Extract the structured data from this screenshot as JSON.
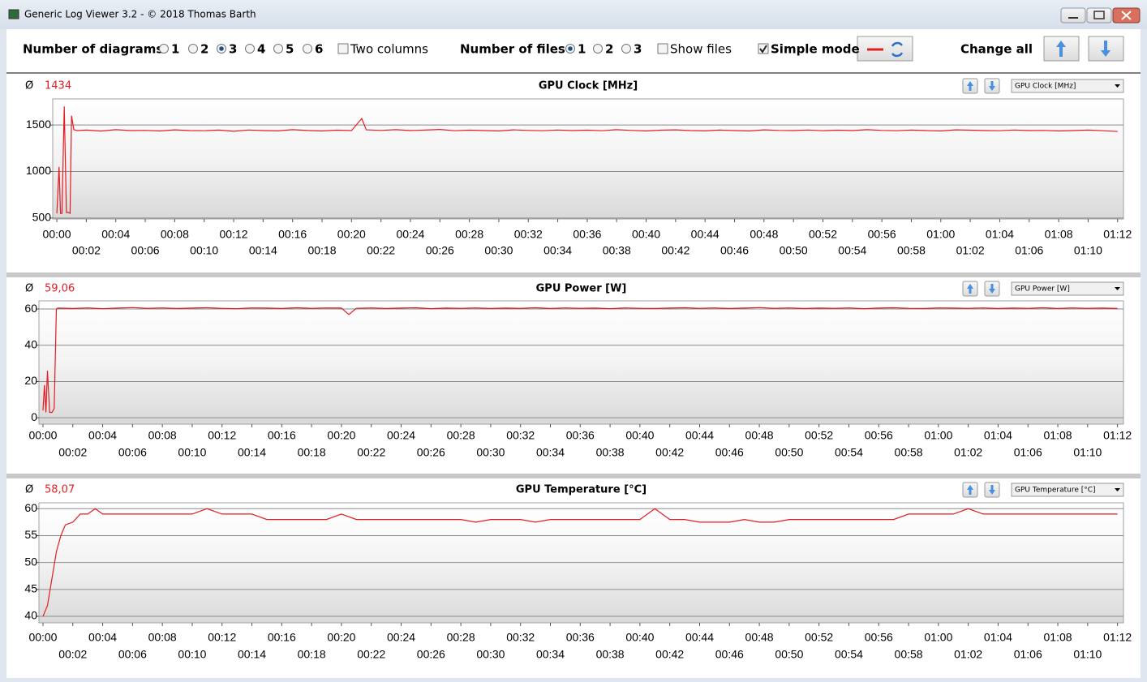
{
  "window": {
    "title": "Generic Log Viewer 3.2 - © 2018 Thomas Barth"
  },
  "toolbar": {
    "diagrams_label": "Number of diagrams",
    "diagram_options": [
      "1",
      "2",
      "3",
      "4",
      "5",
      "6"
    ],
    "diagrams_selected": "3",
    "two_columns": "Two columns",
    "two_columns_checked": false,
    "files_label": "Number of files",
    "file_options": [
      "1",
      "2",
      "3"
    ],
    "files_selected": "1",
    "show_files": "Show files",
    "show_files_checked": false,
    "simple_mode": "Simple mode",
    "simple_mode_checked": true,
    "change_all": "Change all"
  },
  "chart_data": [
    {
      "type": "line",
      "title": "GPU Clock [MHz]",
      "average_symbol": "Ø",
      "average": "1434",
      "selector": "GPU Clock [MHz]",
      "color": "#e31c23",
      "ylim": [
        490,
        1780
      ],
      "yticks": [
        500,
        1000,
        1500
      ],
      "grid": true,
      "xlim": [
        -0.28,
        72.4
      ],
      "xticks": [
        {
          "value": 0,
          "label": "00:00"
        },
        {
          "value": 2,
          "label": "00:02"
        },
        {
          "value": 4,
          "label": "00:04"
        },
        {
          "value": 6,
          "label": "00:06"
        },
        {
          "value": 8,
          "label": "00:08"
        },
        {
          "value": 10,
          "label": "00:10"
        },
        {
          "value": 12,
          "label": "00:12"
        },
        {
          "value": 14,
          "label": "00:14"
        },
        {
          "value": 16,
          "label": "00:16"
        },
        {
          "value": 18,
          "label": "00:18"
        },
        {
          "value": 20,
          "label": "00:20"
        },
        {
          "value": 22,
          "label": "00:22"
        },
        {
          "value": 24,
          "label": "00:24"
        },
        {
          "value": 26,
          "label": "00:26"
        },
        {
          "value": 28,
          "label": "00:28"
        },
        {
          "value": 30,
          "label": "00:30"
        },
        {
          "value": 32,
          "label": "00:32"
        },
        {
          "value": 34,
          "label": "00:34"
        },
        {
          "value": 36,
          "label": "00:36"
        },
        {
          "value": 38,
          "label": "00:38"
        },
        {
          "value": 40,
          "label": "00:40"
        },
        {
          "value": 42,
          "label": "00:42"
        },
        {
          "value": 44,
          "label": "00:44"
        },
        {
          "value": 46,
          "label": "00:46"
        },
        {
          "value": 48,
          "label": "00:48"
        },
        {
          "value": 50,
          "label": "00:50"
        },
        {
          "value": 52,
          "label": "00:52"
        },
        {
          "value": 54,
          "label": "00:54"
        },
        {
          "value": 56,
          "label": "00:56"
        },
        {
          "value": 58,
          "label": "00:58"
        },
        {
          "value": 60,
          "label": "01:00"
        },
        {
          "value": 62,
          "label": "01:02"
        },
        {
          "value": 64,
          "label": "01:04"
        },
        {
          "value": 66,
          "label": "01:06"
        },
        {
          "value": 68,
          "label": "01:08"
        },
        {
          "value": 70,
          "label": "01:10"
        },
        {
          "value": 72,
          "label": "01:12"
        }
      ],
      "x": [
        0,
        0.15,
        0.25,
        0.35,
        0.5,
        0.65,
        0.8,
        0.9,
        1.0,
        1.15,
        1.4,
        2,
        3,
        4,
        5,
        6,
        7,
        8,
        9,
        10,
        11,
        12,
        13,
        14,
        15,
        16,
        17,
        18,
        19,
        20,
        20.7,
        21,
        22,
        23,
        24,
        25,
        26,
        27,
        28,
        29,
        30,
        31,
        32,
        33,
        34,
        35,
        36,
        37,
        38,
        39,
        40,
        41,
        42,
        43,
        44,
        45,
        46,
        47,
        48,
        49,
        50,
        51,
        52,
        53,
        54,
        55,
        56,
        57,
        58,
        59,
        60,
        61,
        62,
        63,
        64,
        65,
        66,
        67,
        68,
        69,
        70,
        71,
        72
      ],
      "values": [
        550,
        1050,
        550,
        550,
        1700,
        560,
        560,
        550,
        1600,
        1450,
        1440,
        1445,
        1435,
        1450,
        1440,
        1442,
        1436,
        1448,
        1440,
        1438,
        1445,
        1432,
        1446,
        1440,
        1437,
        1450,
        1441,
        1436,
        1444,
        1440,
        1570,
        1448,
        1442,
        1450,
        1440,
        1445,
        1452,
        1438,
        1444,
        1440,
        1436,
        1448,
        1442,
        1438,
        1446,
        1440,
        1444,
        1438,
        1450,
        1442,
        1436,
        1444,
        1448,
        1440,
        1437,
        1445,
        1440,
        1436,
        1448,
        1442,
        1440,
        1446,
        1438,
        1444,
        1440,
        1450,
        1442,
        1438,
        1445,
        1440,
        1436,
        1448,
        1444,
        1440,
        1438,
        1446,
        1440,
        1442,
        1436,
        1440,
        1445,
        1438,
        1430
      ]
    },
    {
      "type": "line",
      "title": "GPU Power [W]",
      "average_symbol": "Ø",
      "average": "59,06",
      "selector": "GPU Power [W]",
      "color": "#e31c23",
      "ylim": [
        -3.5,
        64.5
      ],
      "yticks": [
        0,
        20,
        40,
        60
      ],
      "grid": true,
      "xlim": [
        -0.27,
        72.4
      ],
      "xticks": [
        {
          "value": 0,
          "label": "00:00"
        },
        {
          "value": 2,
          "label": "00:02"
        },
        {
          "value": 4,
          "label": "00:04"
        },
        {
          "value": 6,
          "label": "00:06"
        },
        {
          "value": 8,
          "label": "00:08"
        },
        {
          "value": 10,
          "label": "00:10"
        },
        {
          "value": 12,
          "label": "00:12"
        },
        {
          "value": 14,
          "label": "00:14"
        },
        {
          "value": 16,
          "label": "00:16"
        },
        {
          "value": 18,
          "label": "00:18"
        },
        {
          "value": 20,
          "label": "00:20"
        },
        {
          "value": 22,
          "label": "00:22"
        },
        {
          "value": 24,
          "label": "00:24"
        },
        {
          "value": 26,
          "label": "00:26"
        },
        {
          "value": 28,
          "label": "00:28"
        },
        {
          "value": 30,
          "label": "00:30"
        },
        {
          "value": 32,
          "label": "00:32"
        },
        {
          "value": 34,
          "label": "00:34"
        },
        {
          "value": 36,
          "label": "00:36"
        },
        {
          "value": 38,
          "label": "00:38"
        },
        {
          "value": 40,
          "label": "00:40"
        },
        {
          "value": 42,
          "label": "00:42"
        },
        {
          "value": 44,
          "label": "00:44"
        },
        {
          "value": 46,
          "label": "00:46"
        },
        {
          "value": 48,
          "label": "00:48"
        },
        {
          "value": 50,
          "label": "00:50"
        },
        {
          "value": 52,
          "label": "00:52"
        },
        {
          "value": 54,
          "label": "00:54"
        },
        {
          "value": 56,
          "label": "00:56"
        },
        {
          "value": 58,
          "label": "00:58"
        },
        {
          "value": 60,
          "label": "01:00"
        },
        {
          "value": 62,
          "label": "01:02"
        },
        {
          "value": 64,
          "label": "01:04"
        },
        {
          "value": 66,
          "label": "01:06"
        },
        {
          "value": 68,
          "label": "01:08"
        },
        {
          "value": 70,
          "label": "01:10"
        },
        {
          "value": 72,
          "label": "01:12"
        }
      ],
      "x": [
        0,
        0.1,
        0.2,
        0.3,
        0.45,
        0.6,
        0.75,
        0.9,
        1.0,
        2,
        3,
        4,
        5,
        6,
        7,
        8,
        9,
        10,
        11,
        12,
        13,
        14,
        15,
        16,
        17,
        18,
        19,
        20,
        20.5,
        21,
        22,
        23,
        24,
        25,
        26,
        27,
        28,
        29,
        30,
        31,
        32,
        33,
        34,
        35,
        36,
        37,
        38,
        39,
        40,
        41,
        42,
        43,
        44,
        45,
        46,
        47,
        48,
        49,
        50,
        51,
        52,
        53,
        54,
        55,
        56,
        57,
        58,
        59,
        60,
        61,
        62,
        63,
        64,
        65,
        66,
        67,
        68,
        69,
        70,
        71,
        72
      ],
      "values": [
        4,
        18,
        3,
        26,
        3,
        3,
        5,
        60,
        60.5,
        60.3,
        60.6,
        60.2,
        60.5,
        60.8,
        60.4,
        60.6,
        60.3,
        60.5,
        60.7,
        60.4,
        60.2,
        60.6,
        60.5,
        60.3,
        60.7,
        60.4,
        60.6,
        60.5,
        57,
        60.4,
        60.6,
        60.3,
        60.5,
        60.7,
        60.2,
        60.5,
        60.4,
        60.6,
        60.3,
        60.5,
        60.4,
        60.7,
        60.3,
        60.6,
        60.4,
        60.5,
        60.2,
        60.6,
        60.4,
        60.3,
        60.5,
        60.7,
        60.4,
        60.6,
        60.3,
        60.5,
        60.8,
        60.4,
        60.6,
        60.3,
        60.5,
        60.4,
        60.6,
        60.2,
        60.5,
        60.7,
        60.4,
        60.3,
        60.6,
        60.5,
        60.4,
        60.6,
        60.3,
        60.5,
        60.4,
        60.7,
        60.3,
        60.6,
        60.4,
        60.5,
        60.3
      ]
    },
    {
      "type": "line",
      "title": "GPU Temperature [°C]",
      "average_symbol": "Ø",
      "average": "58,07",
      "selector": "GPU Temperature [°C]",
      "color": "#e31c23",
      "ylim": [
        38.8,
        61.1
      ],
      "yticks": [
        40,
        45,
        50,
        55,
        60
      ],
      "grid": true,
      "xlim": [
        -0.27,
        72.4
      ],
      "xticks": [
        {
          "value": 0,
          "label": "00:00"
        },
        {
          "value": 2,
          "label": "00:02"
        },
        {
          "value": 4,
          "label": "00:04"
        },
        {
          "value": 6,
          "label": "00:06"
        },
        {
          "value": 8,
          "label": "00:08"
        },
        {
          "value": 10,
          "label": "00:10"
        },
        {
          "value": 12,
          "label": "00:12"
        },
        {
          "value": 14,
          "label": "00:14"
        },
        {
          "value": 16,
          "label": "00:16"
        },
        {
          "value": 18,
          "label": "00:18"
        },
        {
          "value": 20,
          "label": "00:20"
        },
        {
          "value": 22,
          "label": "00:22"
        },
        {
          "value": 24,
          "label": "00:24"
        },
        {
          "value": 26,
          "label": "00:26"
        },
        {
          "value": 28,
          "label": "00:28"
        },
        {
          "value": 30,
          "label": "00:30"
        },
        {
          "value": 32,
          "label": "00:32"
        },
        {
          "value": 34,
          "label": "00:34"
        },
        {
          "value": 36,
          "label": "00:36"
        },
        {
          "value": 38,
          "label": "00:38"
        },
        {
          "value": 40,
          "label": "00:40"
        },
        {
          "value": 42,
          "label": "00:42"
        },
        {
          "value": 44,
          "label": "00:44"
        },
        {
          "value": 46,
          "label": "00:46"
        },
        {
          "value": 48,
          "label": "00:48"
        },
        {
          "value": 50,
          "label": "00:50"
        },
        {
          "value": 52,
          "label": "00:52"
        },
        {
          "value": 54,
          "label": "00:54"
        },
        {
          "value": 56,
          "label": "00:56"
        },
        {
          "value": 58,
          "label": "00:58"
        },
        {
          "value": 60,
          "label": "01:00"
        },
        {
          "value": 62,
          "label": "01:02"
        },
        {
          "value": 64,
          "label": "01:04"
        },
        {
          "value": 66,
          "label": "01:06"
        },
        {
          "value": 68,
          "label": "01:08"
        },
        {
          "value": 70,
          "label": "01:10"
        },
        {
          "value": 72,
          "label": "01:12"
        }
      ],
      "x": [
        0,
        0.3,
        0.6,
        0.9,
        1.2,
        1.5,
        2,
        2.5,
        3,
        3.5,
        4,
        5,
        6,
        7,
        8,
        9,
        10,
        11,
        12,
        13,
        14,
        15,
        16,
        17,
        18,
        19,
        20,
        21,
        22,
        23,
        24,
        25,
        26,
        27,
        28,
        29,
        30,
        31,
        32,
        33,
        34,
        35,
        36,
        37,
        38,
        39,
        40,
        41,
        42,
        43,
        44,
        45,
        46,
        47,
        48,
        49,
        50,
        51,
        52,
        53,
        54,
        55,
        56,
        57,
        58,
        59,
        60,
        61,
        62,
        63,
        64,
        65,
        66,
        67,
        68,
        69,
        70,
        71,
        72
      ],
      "values": [
        40,
        42,
        47,
        52,
        55,
        57,
        57.5,
        59,
        59,
        60,
        59,
        59,
        59,
        59,
        59,
        59,
        59,
        60,
        59,
        59,
        59,
        58,
        58,
        58,
        58,
        58,
        59,
        58,
        58,
        58,
        58,
        58,
        58,
        58,
        58,
        57.5,
        58,
        58,
        58,
        57.5,
        58,
        58,
        58,
        58,
        58,
        58,
        58,
        60,
        58,
        58,
        57.5,
        57.5,
        57.5,
        58,
        57.5,
        57.5,
        58,
        58,
        58,
        58,
        58,
        58,
        58,
        58,
        59,
        59,
        59,
        59,
        60,
        59,
        59,
        59,
        59,
        59,
        59,
        59,
        59,
        59,
        59
      ]
    }
  ]
}
